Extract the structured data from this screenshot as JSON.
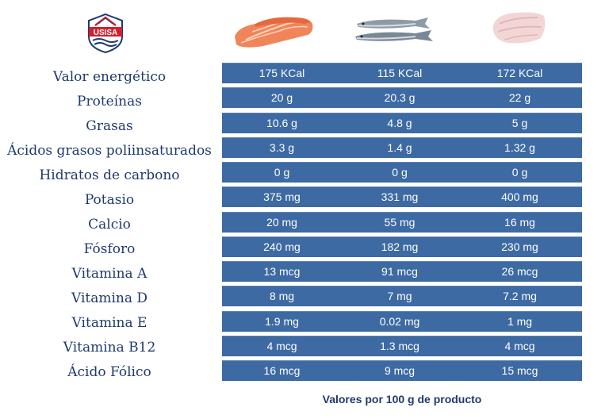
{
  "logo": {
    "text": "USISA",
    "icon": "usisa-logo-icon",
    "colors": {
      "red": "#d3202e",
      "blue": "#1f3a6e"
    }
  },
  "products": [
    {
      "icon": "salmon-fillet-icon"
    },
    {
      "icon": "sardines-icon"
    },
    {
      "icon": "tuna-loin-icon"
    }
  ],
  "nutrients": [
    {
      "label": "Valor energético",
      "values": [
        "175 KCal",
        "115 KCal",
        "172 KCal"
      ]
    },
    {
      "label": "Proteínas",
      "values": [
        "20 g",
        "20.3 g",
        "22 g"
      ]
    },
    {
      "label": "Grasas",
      "values": [
        "10.6 g",
        "4.8 g",
        "5 g"
      ]
    },
    {
      "label": "Ácidos grasos poliinsaturados",
      "values": [
        "3.3 g",
        "1.4 g",
        "1.32 g"
      ]
    },
    {
      "label": "Hidratos de carbono",
      "values": [
        "0 g",
        "0 g",
        "0 g"
      ]
    },
    {
      "label": "Potasio",
      "values": [
        "375 mg",
        "331 mg",
        "400 mg"
      ]
    },
    {
      "label": "Calcio",
      "values": [
        "20 mg",
        "55 mg",
        "16 mg"
      ]
    },
    {
      "label": "Fósforo",
      "values": [
        "240 mg",
        "182 mg",
        "230 mg"
      ]
    },
    {
      "label": "Vitamina A",
      "values": [
        "13 mcg",
        "91 mcg",
        "26 mcg"
      ]
    },
    {
      "label": "Vitamina D",
      "values": [
        "8 mg",
        "7 mg",
        "7.2 mg"
      ]
    },
    {
      "label": "Vitamina E",
      "values": [
        "1.9 mg",
        "0.02 mg",
        "1 mg"
      ]
    },
    {
      "label": "Vitamina B12",
      "values": [
        "4 mcg",
        "1.3 mcg",
        "4 mcg"
      ]
    },
    {
      "label": "Ácido Fólico",
      "values": [
        "16 mcg",
        "9 mcg",
        "15 mcg"
      ]
    }
  ],
  "footnote": "Valores por 100 g de producto",
  "colors": {
    "row_background": "#3d6aa3",
    "label_text": "#1f3a6e",
    "cell_text": "#ffffff"
  }
}
